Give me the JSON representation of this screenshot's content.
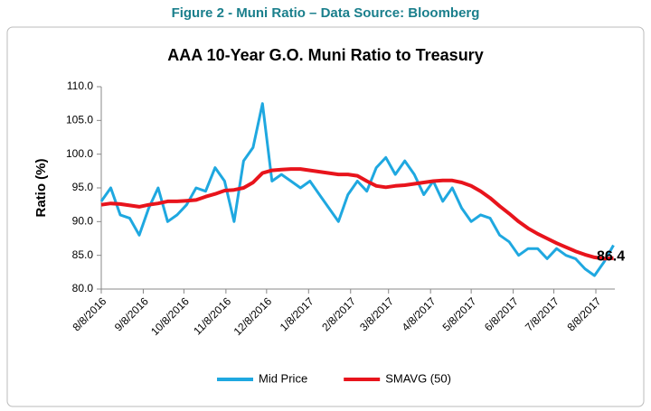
{
  "chart_data": {
    "type": "line",
    "caption": "Figure 2 - Muni Ratio – Data Source: Bloomberg",
    "title": "AAA  10-Year G.O. Muni Ratio to Treasury",
    "y_label": "Ratio (%)",
    "x": [
      "8/8/2016",
      "8/15/2016",
      "8/22/2016",
      "8/29/2016",
      "9/5/2016",
      "9/12/2016",
      "9/19/2016",
      "9/26/2016",
      "10/3/2016",
      "10/10/2016",
      "10/17/2016",
      "10/24/2016",
      "10/31/2016",
      "11/7/2016",
      "11/14/2016",
      "11/21/2016",
      "11/28/2016",
      "12/5/2016",
      "12/12/2016",
      "12/19/2016",
      "12/26/2016",
      "1/2/2017",
      "1/9/2017",
      "1/16/2017",
      "1/23/2017",
      "1/30/2017",
      "2/6/2017",
      "2/13/2017",
      "2/20/2017",
      "2/27/2017",
      "3/6/2017",
      "3/13/2017",
      "3/20/2017",
      "3/27/2017",
      "4/3/2017",
      "4/10/2017",
      "4/17/2017",
      "4/24/2017",
      "5/1/2017",
      "5/8/2017",
      "5/15/2017",
      "5/22/2017",
      "5/29/2017",
      "6/5/2017",
      "6/12/2017",
      "6/19/2017",
      "6/26/2017",
      "7/3/2017",
      "7/10/2017",
      "7/17/2017",
      "7/24/2017",
      "7/31/2017",
      "8/7/2017",
      "8/14/2017",
      "8/21/2017"
    ],
    "series": [
      {
        "name": "Mid Price",
        "color": "#1fa8e0",
        "values": [
          93,
          95,
          91,
          90.5,
          88,
          92,
          95,
          90,
          91,
          92.5,
          95,
          94.5,
          98,
          96,
          90,
          99,
          101,
          107.5,
          96,
          97,
          96,
          95,
          96,
          94,
          92,
          90,
          94,
          96,
          94.5,
          98,
          99.5,
          97,
          99,
          97,
          94,
          96,
          93,
          95,
          92,
          90,
          91,
          90.5,
          88,
          87,
          85,
          86,
          86,
          84.5,
          86,
          85,
          84.5,
          83,
          82,
          84,
          86.5
        ]
      },
      {
        "name": "SMAVG (50)",
        "color": "#e8141c",
        "values": [
          92.5,
          92.7,
          92.6,
          92.4,
          92.2,
          92.5,
          92.7,
          93,
          93,
          93.1,
          93.2,
          93.7,
          94.1,
          94.6,
          94.7,
          95,
          95.8,
          97.2,
          97.6,
          97.7,
          97.8,
          97.8,
          97.6,
          97.4,
          97.2,
          97,
          97,
          96.8,
          96,
          95.3,
          95.1,
          95.3,
          95.4,
          95.6,
          95.8,
          96,
          96.1,
          96.1,
          95.8,
          95.3,
          94.5,
          93.5,
          92.3,
          91.2,
          90,
          89,
          88.2,
          87.5,
          86.8,
          86.2,
          85.6,
          85.1,
          84.7,
          84.5,
          84.6
        ]
      }
    ],
    "annotation": {
      "value": 86.4,
      "label": "86.4"
    },
    "xlim": [
      "8/8/2016",
      "8/22/2017"
    ],
    "xticks": [
      "8/8/2016",
      "9/8/2016",
      "10/8/2016",
      "11/8/2016",
      "12/8/2016",
      "1/8/2017",
      "2/8/2017",
      "3/8/2017",
      "4/8/2017",
      "5/8/2017",
      "6/8/2017",
      "7/8/2017",
      "8/8/2017"
    ],
    "ylim": [
      80,
      110
    ],
    "yticks": [
      {
        "value": 80,
        "label": "80.0"
      },
      {
        "value": 85,
        "label": "85.0"
      },
      {
        "value": 90,
        "label": "90.0"
      },
      {
        "value": 95,
        "label": "95.0"
      },
      {
        "value": 100,
        "label": "100.0"
      },
      {
        "value": 105,
        "label": "105.0"
      },
      {
        "value": 110,
        "label": "110.0"
      }
    ],
    "grid": false,
    "legend": "bottom"
  }
}
